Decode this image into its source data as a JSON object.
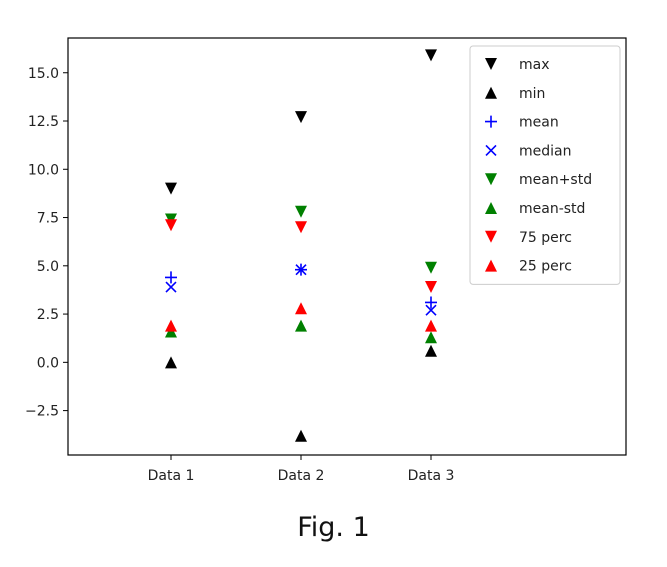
{
  "caption": "Fig. 1",
  "chart_data": {
    "type": "scatter",
    "categories": [
      "Data 1",
      "Data 2",
      "Data 3"
    ],
    "ylim": [
      -4.8,
      16.8
    ],
    "yticks": [
      "−2.5",
      "0.0",
      "2.5",
      "5.0",
      "7.5",
      "10.0",
      "12.5",
      "15.0"
    ],
    "ytick_values": [
      -2.5,
      0,
      2.5,
      5,
      7.5,
      10,
      12.5,
      15
    ],
    "legend_position": "top-right",
    "grid": false,
    "series": [
      {
        "name": "max",
        "marker": "triangle-down",
        "color": "#000000",
        "values": [
          9.0,
          12.7,
          15.9
        ]
      },
      {
        "name": "min",
        "marker": "triangle-up",
        "color": "#000000",
        "values": [
          0.0,
          -3.8,
          0.6
        ]
      },
      {
        "name": "mean",
        "marker": "plus",
        "color": "#0000ff",
        "values": [
          4.4,
          4.8,
          3.1
        ]
      },
      {
        "name": "median",
        "marker": "x",
        "color": "#0000ff",
        "values": [
          3.9,
          4.8,
          2.7
        ]
      },
      {
        "name": "mean+std",
        "marker": "triangle-down",
        "color": "#008000",
        "values": [
          7.4,
          7.8,
          4.9
        ]
      },
      {
        "name": "mean-std",
        "marker": "triangle-up",
        "color": "#008000",
        "values": [
          1.6,
          1.9,
          1.3
        ]
      },
      {
        "name": "75 perc",
        "marker": "triangle-down",
        "color": "#ff0000",
        "values": [
          7.1,
          7.0,
          3.9
        ]
      },
      {
        "name": "25 perc",
        "marker": "triangle-up",
        "color": "#ff0000",
        "values": [
          1.9,
          2.8,
          1.9
        ]
      }
    ]
  }
}
